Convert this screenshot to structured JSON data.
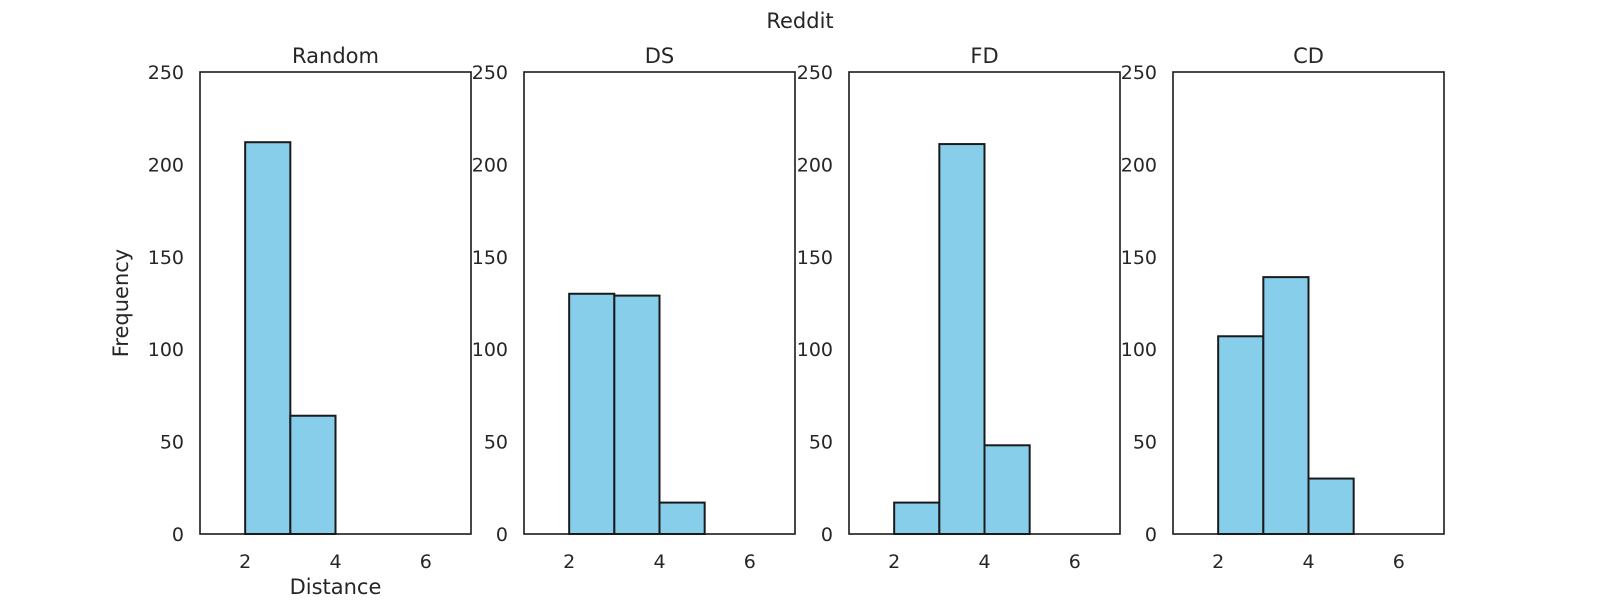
{
  "figure": {
    "suptitle": "Reddit",
    "xlabel": "Distance",
    "ylabel": "Frequency",
    "bar_color": "#87ceeb",
    "edge_color": "#1a1a1a"
  },
  "chart_data": [
    {
      "type": "bar",
      "title": "Random",
      "xlabel": "Distance",
      "ylabel": "Frequency",
      "xlim": [
        1,
        7
      ],
      "ylim": [
        0,
        250
      ],
      "xticks": [
        2,
        4,
        6
      ],
      "yticks": [
        0,
        50,
        100,
        150,
        200,
        250
      ],
      "bin_edges": [
        2,
        3,
        4
      ],
      "values": [
        212,
        64
      ]
    },
    {
      "type": "bar",
      "title": "DS",
      "xlabel": "",
      "ylabel": "",
      "xlim": [
        1,
        7
      ],
      "ylim": [
        0,
        250
      ],
      "xticks": [
        2,
        4,
        6
      ],
      "yticks": [
        0,
        50,
        100,
        150,
        200,
        250
      ],
      "bin_edges": [
        2,
        3,
        4,
        5
      ],
      "values": [
        130,
        129,
        17
      ]
    },
    {
      "type": "bar",
      "title": "FD",
      "xlabel": "",
      "ylabel": "",
      "xlim": [
        1,
        7
      ],
      "ylim": [
        0,
        250
      ],
      "xticks": [
        2,
        4,
        6
      ],
      "yticks": [
        0,
        50,
        100,
        150,
        200,
        250
      ],
      "bin_edges": [
        2,
        3,
        4,
        5
      ],
      "values": [
        17,
        211,
        48
      ]
    },
    {
      "type": "bar",
      "title": "CD",
      "xlabel": "",
      "ylabel": "",
      "xlim": [
        1,
        7
      ],
      "ylim": [
        0,
        250
      ],
      "xticks": [
        2,
        4,
        6
      ],
      "yticks": [
        0,
        50,
        100,
        150,
        200,
        250
      ],
      "bin_edges": [
        2,
        3,
        4,
        5
      ],
      "values": [
        107,
        139,
        30
      ]
    }
  ]
}
